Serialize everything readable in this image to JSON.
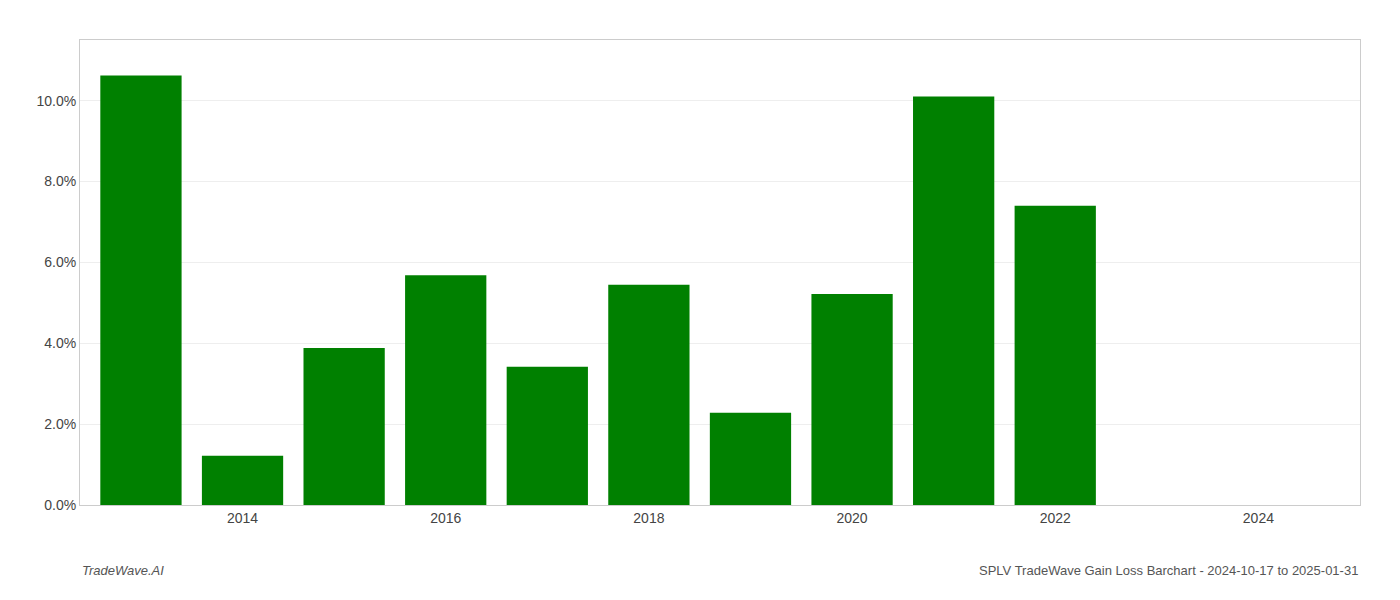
{
  "chart_data": {
    "type": "bar",
    "x": [
      2013,
      2014,
      2015,
      2016,
      2017,
      2018,
      2019,
      2020,
      2021,
      2022
    ],
    "values": [
      0.1062,
      0.0122,
      0.0388,
      0.0568,
      0.0342,
      0.0545,
      0.0228,
      0.0522,
      0.101,
      0.074
    ],
    "color": "#008000",
    "xlim": [
      2012.4,
      2025.0
    ],
    "xticks": [
      2014,
      2016,
      2018,
      2020,
      2022,
      2024
    ],
    "ylim": [
      0,
      0.115
    ],
    "yticks": [
      {
        "value": 0.0,
        "label": "0.0%"
      },
      {
        "value": 0.02,
        "label": "2.0%"
      },
      {
        "value": 0.04,
        "label": "4.0%"
      },
      {
        "value": 0.06,
        "label": "6.0%"
      },
      {
        "value": 0.08,
        "label": "8.0%"
      },
      {
        "value": 0.1,
        "label": "10.0%"
      }
    ],
    "grid": true,
    "annotations": [
      "TradeWave.AI",
      "SPLV TradeWave Gain Loss Barchart - 2024-10-17 to 2025-01-31"
    ]
  }
}
